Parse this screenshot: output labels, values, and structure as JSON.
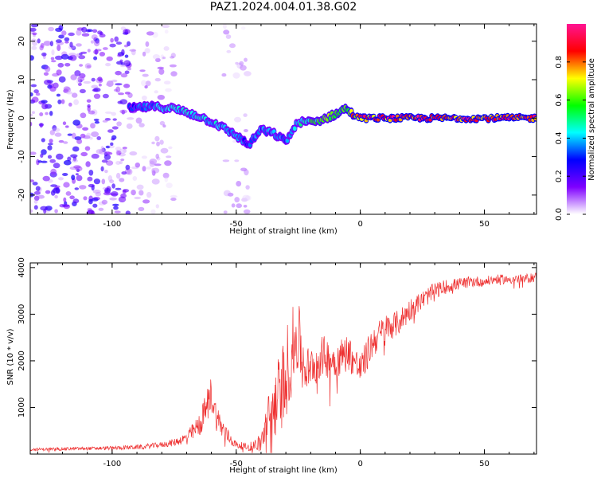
{
  "title": "PAZ1.2024.004.01.38.G02",
  "chart_data": [
    {
      "type": "heatmap",
      "xlabel": "Height of straight line (km)",
      "ylabel": "Frequency (Hz)",
      "xlim": [
        -133,
        71
      ],
      "ylim": [
        -25,
        24.5
      ],
      "xticks": [
        -100,
        -50,
        0,
        50
      ],
      "xtick_labels": [
        "-100",
        "-50",
        "0",
        "50"
      ],
      "yticks": [
        -20,
        -10,
        0,
        10,
        20
      ],
      "ytick_labels": [
        "-20",
        "-10",
        "0",
        "10",
        "20"
      ],
      "colorbar": {
        "label": "Normalized spectral amplitude",
        "ticks": [
          0.0,
          0.2,
          0.4,
          0.6,
          0.8
        ],
        "tick_labels": [
          "0.0",
          "0.2",
          "0.4",
          "0.6",
          "0.8"
        ],
        "range": [
          0,
          1
        ],
        "colormap": [
          "#ffffff",
          "#7f00ff",
          "#0000ff",
          "#00ffff",
          "#00ff00",
          "#ffff00",
          "#ff0000",
          "#ff1493"
        ]
      },
      "signal_track": {
        "x": [
          -93,
          -85,
          -75,
          -65,
          -58,
          -50,
          -45,
          -40,
          -35,
          -30,
          -25,
          -22,
          -18,
          -14,
          -10,
          -6,
          -3,
          0,
          10,
          20,
          30,
          40,
          50,
          60,
          71
        ],
        "freq_hz": [
          2.5,
          3,
          2.5,
          0.5,
          -1.5,
          -4.5,
          -7,
          -3,
          -4,
          -6,
          -1,
          -1,
          -1,
          0,
          1,
          2.5,
          1,
          0,
          0,
          0,
          0,
          0,
          0,
          0,
          0
        ],
        "amplitude": [
          0.35,
          0.4,
          0.45,
          0.45,
          0.45,
          0.4,
          0.35,
          0.4,
          0.4,
          0.4,
          0.45,
          0.55,
          0.6,
          0.65,
          0.65,
          0.7,
          0.8,
          0.9,
          0.95,
          0.95,
          0.95,
          0.95,
          0.95,
          0.95,
          0.95
        ]
      },
      "noise_regions": [
        {
          "x_range": [
            -133,
            -93
          ],
          "amplitude": 0.2
        },
        {
          "x_range": [
            -93,
            -75
          ],
          "amplitude": 0.1
        },
        {
          "x_range": [
            -55,
            -45
          ],
          "amplitude": 0.08
        }
      ]
    },
    {
      "type": "line",
      "xlabel": "Height of straight line (km)",
      "ylabel": "SNR (10 * v/v)",
      "xlim": [
        -133,
        71
      ],
      "ylim": [
        0,
        4100
      ],
      "xticks": [
        -100,
        -50,
        0,
        50
      ],
      "xtick_labels": [
        "-100",
        "-50",
        "0",
        "50"
      ],
      "yticks": [
        1000,
        2000,
        3000,
        4000
      ],
      "ytick_labels": [
        "1000",
        "2000",
        "3000",
        "4000"
      ],
      "color": "#ee3030",
      "x": [
        -133,
        -120,
        -110,
        -100,
        -90,
        -80,
        -75,
        -70,
        -65,
        -62,
        -60,
        -58,
        -55,
        -52,
        -50,
        -45,
        -40,
        -38,
        -35,
        -32,
        -30,
        -28,
        -25,
        -22,
        -20,
        -15,
        -10,
        -5,
        0,
        5,
        10,
        15,
        20,
        25,
        30,
        35,
        40,
        45,
        50,
        55,
        60,
        65,
        71
      ],
      "y": [
        100,
        110,
        120,
        130,
        150,
        200,
        250,
        350,
        600,
        1000,
        1300,
        800,
        500,
        300,
        200,
        150,
        250,
        600,
        1000,
        1400,
        1700,
        2200,
        2500,
        1800,
        1900,
        2100,
        2000,
        2200,
        1800,
        2400,
        2700,
        2800,
        3100,
        3300,
        3500,
        3600,
        3650,
        3700,
        3700,
        3750,
        3750,
        3750,
        3800
      ],
      "noise_amplitude": [
        30,
        35,
        35,
        40,
        50,
        60,
        80,
        120,
        250,
        350,
        400,
        300,
        200,
        120,
        80,
        80,
        200,
        500,
        700,
        900,
        1000,
        900,
        800,
        500,
        450,
        450,
        400,
        400,
        350,
        350,
        300,
        280,
        250,
        200,
        180,
        150,
        130,
        120,
        110,
        100,
        100,
        100,
        100
      ]
    }
  ]
}
